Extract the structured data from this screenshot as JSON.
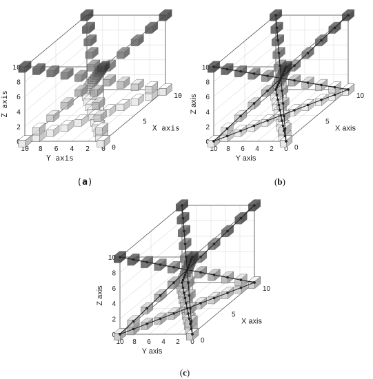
{
  "figure": {
    "panels": [
      {
        "id": "a",
        "label_open": "(",
        "label_letter": "a",
        "label_close": ")",
        "font": "mono",
        "show_trajectory": false,
        "shade_by_index": false
      },
      {
        "id": "b",
        "label_open": "(",
        "label_letter": "b",
        "label_close": ")",
        "font": "sans",
        "show_trajectory": true,
        "shade_by_index": false
      },
      {
        "id": "c",
        "label_open": "(",
        "label_letter": "c",
        "label_close": ")",
        "font": "sans",
        "show_trajectory": true,
        "shade_by_index": true
      }
    ]
  },
  "chart_data": [
    {
      "type": "scatter",
      "subtype": "3d-voxel-trajectories",
      "panel": "a",
      "xlabel": "X axis",
      "ylabel": "Y axis",
      "zlabel": "Z axis",
      "xlim": [
        0,
        10
      ],
      "ylim": [
        0,
        10
      ],
      "zlim": [
        0,
        10
      ],
      "xticks": [
        "0",
        "5",
        "10"
      ],
      "yticks": [
        "10",
        "8",
        "6",
        "4",
        "2",
        "0"
      ],
      "zticks": [
        "0",
        "2",
        "4",
        "6",
        "8",
        "10"
      ],
      "grid": true,
      "series": [
        {
          "points": [
            [
              0,
              10,
              0
            ],
            [
              1,
              9,
              0
            ],
            [
              2,
              8,
              0
            ],
            [
              3,
              7,
              0
            ],
            [
              4,
              6,
              0
            ],
            [
              5,
              5,
              0
            ],
            [
              6,
              4,
              0
            ],
            [
              7,
              3,
              0
            ],
            [
              8,
              2,
              0
            ],
            [
              9,
              1,
              0
            ],
            [
              10,
              0,
              0
            ]
          ]
        },
        {
          "points": [
            [
              10,
              10,
              0
            ],
            [
              9,
              9,
              0
            ],
            [
              8,
              8,
              0
            ],
            [
              7,
              7,
              0
            ],
            [
              6,
              6,
              0
            ],
            [
              5,
              5,
              0
            ],
            [
              4,
              4,
              0
            ],
            [
              3,
              3,
              0
            ],
            [
              2,
              2,
              0
            ],
            [
              1,
              1,
              0
            ],
            [
              0,
              0,
              0
            ]
          ]
        },
        {
          "points": [
            [
              0,
              10,
              10
            ],
            [
              1,
              9,
              9
            ],
            [
              2,
              8,
              8
            ],
            [
              3,
              7,
              7
            ],
            [
              4,
              6,
              6
            ],
            [
              5,
              5,
              5
            ],
            [
              6,
              4,
              4
            ],
            [
              7,
              3,
              3
            ],
            [
              8,
              2,
              2
            ],
            [
              9,
              1,
              1
            ],
            [
              10,
              0,
              0
            ]
          ]
        },
        {
          "points": [
            [
              10,
              10,
              10
            ],
            [
              9,
              9,
              9
            ],
            [
              8,
              8,
              8
            ],
            [
              7,
              7,
              7
            ],
            [
              6,
              6,
              6
            ],
            [
              5,
              5,
              5
            ],
            [
              4,
              4,
              4
            ],
            [
              3,
              3,
              3
            ],
            [
              2,
              2,
              2
            ],
            [
              1,
              1,
              1
            ],
            [
              0,
              0,
              0
            ]
          ]
        },
        {
          "points": [
            [
              0,
              0,
              10
            ],
            [
              1,
              1,
              9
            ],
            [
              2,
              2,
              8
            ],
            [
              3,
              3,
              7
            ],
            [
              4,
              4,
              6
            ],
            [
              5,
              5,
              5
            ],
            [
              6,
              6,
              4
            ],
            [
              7,
              7,
              3
            ],
            [
              8,
              8,
              2
            ],
            [
              9,
              9,
              1
            ],
            [
              10,
              10,
              0
            ]
          ]
        },
        {
          "points": [
            [
              10,
              0,
              10
            ],
            [
              9,
              1,
              9
            ],
            [
              8,
              2,
              8
            ],
            [
              7,
              3,
              7
            ],
            [
              6,
              4,
              6
            ],
            [
              5,
              5,
              5
            ],
            [
              4,
              6,
              4
            ],
            [
              3,
              7,
              3
            ],
            [
              2,
              8,
              2
            ],
            [
              1,
              9,
              1
            ],
            [
              0,
              10,
              0
            ]
          ]
        }
      ]
    },
    {
      "type": "scatter",
      "subtype": "3d-voxel-trajectories",
      "panel": "b",
      "xlabel": "X axis",
      "ylabel": "Y axis",
      "zlabel": "Z axis",
      "xlim": [
        0,
        10
      ],
      "ylim": [
        0,
        10
      ],
      "zlim": [
        0,
        10
      ],
      "xticks": [
        "0",
        "5",
        "10"
      ],
      "yticks": [
        "10",
        "8",
        "6",
        "4",
        "2",
        "0"
      ],
      "zticks": [
        "0",
        "2",
        "4",
        "6",
        "8",
        "10"
      ],
      "grid": true,
      "series": [
        {
          "points": [
            [
              0,
              10,
              0
            ],
            [
              1,
              9,
              0
            ],
            [
              2,
              8,
              0
            ],
            [
              3,
              7,
              0
            ],
            [
              4,
              6,
              0
            ],
            [
              5,
              5,
              0
            ],
            [
              6,
              4,
              0
            ],
            [
              7,
              3,
              0
            ],
            [
              8,
              2,
              0
            ],
            [
              9,
              1,
              0
            ],
            [
              10,
              0,
              0
            ]
          ]
        },
        {
          "points": [
            [
              10,
              10,
              0
            ],
            [
              9,
              9,
              0
            ],
            [
              8,
              8,
              0
            ],
            [
              7,
              7,
              0
            ],
            [
              6,
              6,
              0
            ],
            [
              5,
              5,
              0
            ],
            [
              4,
              4,
              0
            ],
            [
              3,
              3,
              0
            ],
            [
              2,
              2,
              0
            ],
            [
              1,
              1,
              0
            ],
            [
              0,
              0,
              0
            ]
          ]
        },
        {
          "points": [
            [
              0,
              10,
              10
            ],
            [
              1,
              9,
              9
            ],
            [
              2,
              8,
              8
            ],
            [
              3,
              7,
              7
            ],
            [
              4,
              6,
              6
            ],
            [
              5,
              5,
              5
            ],
            [
              6,
              4,
              4
            ],
            [
              7,
              3,
              3
            ],
            [
              8,
              2,
              2
            ],
            [
              9,
              1,
              1
            ],
            [
              10,
              0,
              0
            ]
          ]
        },
        {
          "points": [
            [
              10,
              10,
              10
            ],
            [
              9,
              9,
              9
            ],
            [
              8,
              8,
              8
            ],
            [
              7,
              7,
              7
            ],
            [
              6,
              6,
              6
            ],
            [
              5,
              5,
              5
            ],
            [
              4,
              4,
              4
            ],
            [
              3,
              3,
              3
            ],
            [
              2,
              2,
              2
            ],
            [
              1,
              1,
              1
            ],
            [
              0,
              0,
              0
            ]
          ]
        },
        {
          "points": [
            [
              0,
              0,
              10
            ],
            [
              1,
              1,
              9
            ],
            [
              2,
              2,
              8
            ],
            [
              3,
              3,
              7
            ],
            [
              4,
              4,
              6
            ],
            [
              5,
              5,
              5
            ],
            [
              6,
              6,
              4
            ],
            [
              7,
              7,
              3
            ],
            [
              8,
              8,
              2
            ],
            [
              9,
              9,
              1
            ],
            [
              10,
              10,
              0
            ]
          ]
        },
        {
          "points": [
            [
              10,
              0,
              10
            ],
            [
              9,
              1,
              9
            ],
            [
              8,
              2,
              8
            ],
            [
              7,
              3,
              7
            ],
            [
              6,
              4,
              6
            ],
            [
              5,
              5,
              5
            ],
            [
              4,
              6,
              4
            ],
            [
              3,
              7,
              3
            ],
            [
              2,
              8,
              2
            ],
            [
              1,
              9,
              1
            ],
            [
              0,
              10,
              0
            ]
          ]
        }
      ]
    },
    {
      "type": "scatter",
      "subtype": "3d-voxel-trajectories",
      "panel": "c",
      "xlabel": "X axis",
      "ylabel": "Y axis",
      "zlabel": "Z axis",
      "xlim": [
        0,
        10
      ],
      "ylim": [
        0,
        10
      ],
      "zlim": [
        0,
        10
      ],
      "xticks": [
        "0",
        "5",
        "10"
      ],
      "yticks": [
        "10",
        "8",
        "6",
        "4",
        "2",
        "0"
      ],
      "zticks": [
        "0",
        "2",
        "4",
        "6",
        "8",
        "10"
      ],
      "grid": true,
      "series": [
        {
          "points": [
            [
              0,
              10,
              0
            ],
            [
              1,
              9,
              0
            ],
            [
              2,
              8,
              0
            ],
            [
              3,
              7,
              0
            ],
            [
              4,
              6,
              0
            ],
            [
              5,
              5,
              0
            ],
            [
              6,
              4,
              0
            ],
            [
              7,
              3,
              0
            ],
            [
              8,
              2,
              0
            ],
            [
              9,
              1,
              0
            ],
            [
              10,
              0,
              0
            ]
          ]
        },
        {
          "points": [
            [
              10,
              10,
              0
            ],
            [
              9,
              9,
              0
            ],
            [
              8,
              8,
              0
            ],
            [
              7,
              7,
              0
            ],
            [
              6,
              6,
              0
            ],
            [
              5,
              5,
              0
            ],
            [
              4,
              4,
              0
            ],
            [
              3,
              3,
              0
            ],
            [
              2,
              2,
              0
            ],
            [
              1,
              1,
              0
            ],
            [
              0,
              0,
              0
            ]
          ]
        },
        {
          "points": [
            [
              0,
              10,
              10
            ],
            [
              1,
              9,
              9
            ],
            [
              2,
              8,
              8
            ],
            [
              3,
              7,
              7
            ],
            [
              4,
              6,
              6
            ],
            [
              5,
              5,
              5
            ],
            [
              6,
              4,
              4
            ],
            [
              7,
              3,
              3
            ],
            [
              8,
              2,
              2
            ],
            [
              9,
              1,
              1
            ],
            [
              10,
              0,
              0
            ]
          ]
        },
        {
          "points": [
            [
              10,
              10,
              10
            ],
            [
              9,
              9,
              9
            ],
            [
              8,
              8,
              8
            ],
            [
              7,
              7,
              7
            ],
            [
              6,
              6,
              6
            ],
            [
              5,
              5,
              5
            ],
            [
              4,
              4,
              4
            ],
            [
              3,
              3,
              3
            ],
            [
              2,
              2,
              2
            ],
            [
              1,
              1,
              1
            ],
            [
              0,
              0,
              0
            ]
          ]
        },
        {
          "points": [
            [
              0,
              0,
              10
            ],
            [
              1,
              1,
              9
            ],
            [
              2,
              2,
              8
            ],
            [
              3,
              3,
              7
            ],
            [
              4,
              4,
              6
            ],
            [
              5,
              5,
              5
            ],
            [
              6,
              6,
              4
            ],
            [
              7,
              7,
              3
            ],
            [
              8,
              8,
              2
            ],
            [
              9,
              9,
              1
            ],
            [
              10,
              10,
              0
            ]
          ]
        },
        {
          "points": [
            [
              10,
              0,
              10
            ],
            [
              9,
              1,
              9
            ],
            [
              8,
              2,
              8
            ],
            [
              7,
              3,
              7
            ],
            [
              6,
              4,
              6
            ],
            [
              5,
              5,
              5
            ],
            [
              4,
              6,
              4
            ],
            [
              3,
              7,
              3
            ],
            [
              2,
              8,
              2
            ],
            [
              1,
              9,
              1
            ],
            [
              0,
              10,
              0
            ]
          ]
        }
      ]
    }
  ],
  "colors": {
    "cube_dark": "#3a3a3a",
    "cube_light": "#f2f2f2",
    "cube_edge": "#555555",
    "axis": "#4a4a4a",
    "grid": "#d9d9d9",
    "trajectory": "#222222",
    "text": "#222222"
  }
}
